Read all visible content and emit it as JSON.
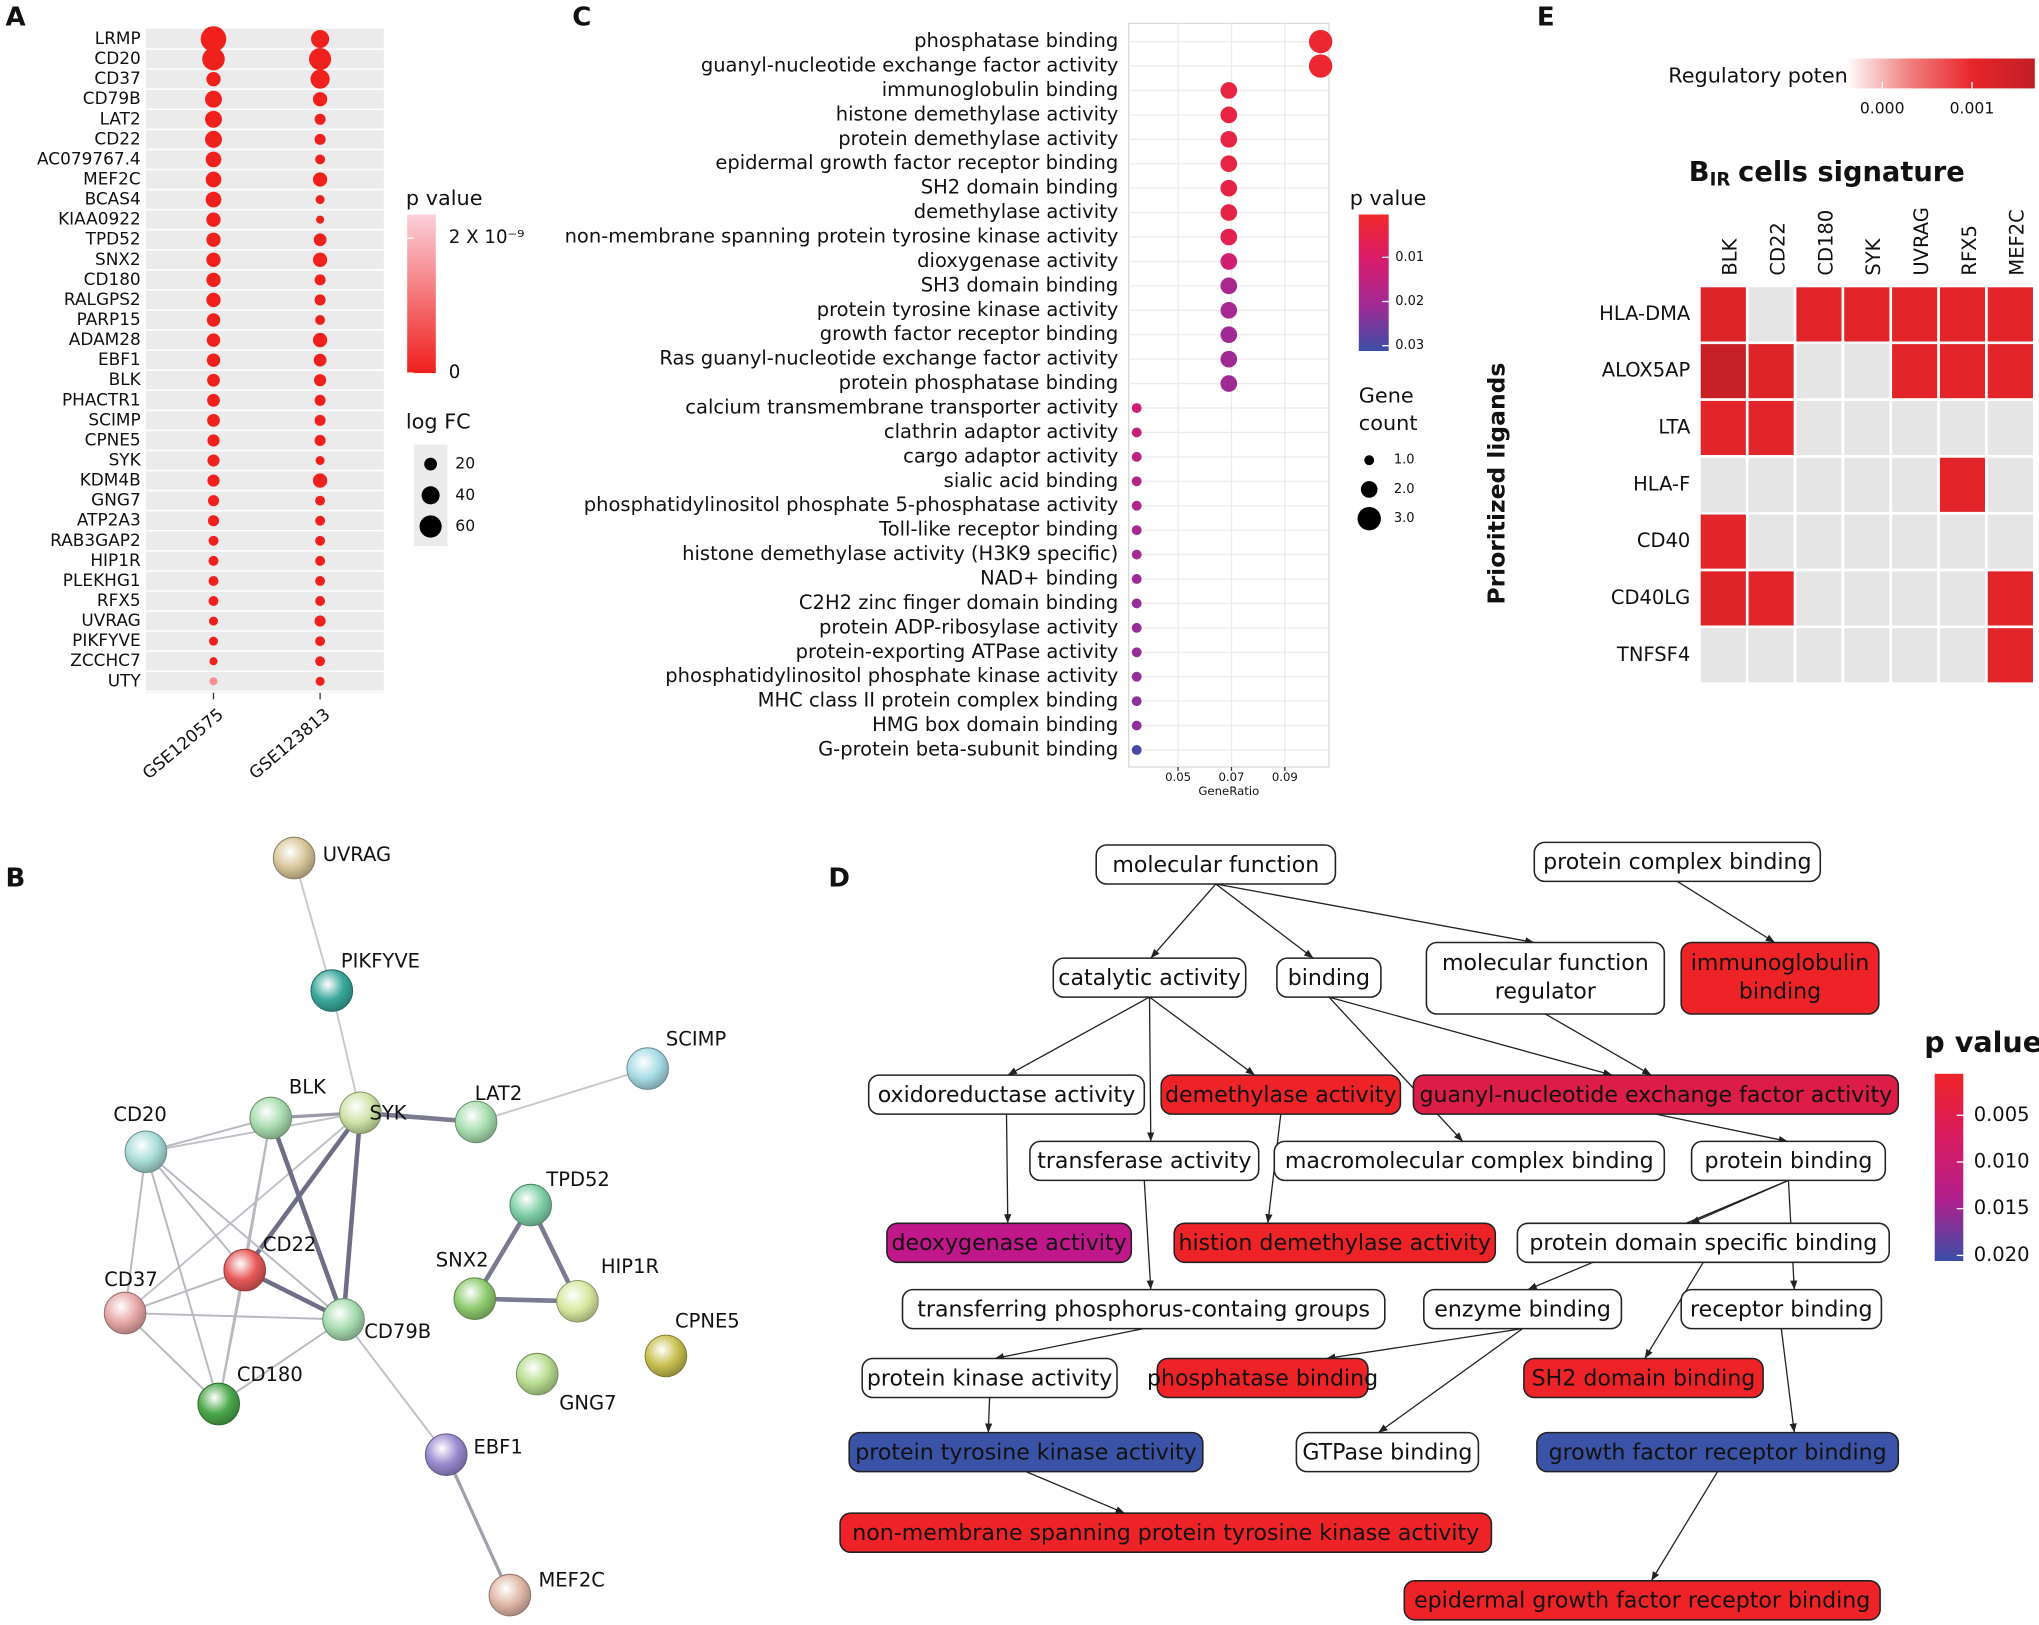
{
  "chart_data": [
    {
      "type": "dot",
      "panel": "A",
      "categories": [
        "LRMP",
        "CD20",
        "CD37",
        "CD79B",
        "LAT2",
        "CD22",
        "AC079767.4",
        "MEF2C",
        "BCAS4",
        "KIAA0922",
        "TPD52",
        "SNX2",
        "CD180",
        "RALGPS2",
        "PARP15",
        "ADAM28",
        "EBF1",
        "BLK",
        "PHACTR1",
        "SCIMP",
        "CPNE5",
        "SYK",
        "KDM4B",
        "GNG7",
        "ATP2A3",
        "RAB3GAP2",
        "HIP1R",
        "PLEKHG1",
        "RFX5",
        "UVRAG",
        "PIKFYVE",
        "ZCCHC7",
        "UTY"
      ],
      "series": [
        {
          "name": "GSE120575",
          "sizes": [
            80,
            62,
            25,
            35,
            35,
            35,
            30,
            30,
            30,
            25,
            25,
            25,
            25,
            25,
            22,
            22,
            22,
            20,
            20,
            20,
            18,
            18,
            18,
            15,
            15,
            12,
            12,
            12,
            12,
            10,
            10,
            8,
            8
          ],
          "color_values": [
            0,
            0,
            0,
            0,
            0,
            0,
            0,
            0,
            0,
            0,
            0,
            0,
            0,
            0,
            0,
            0,
            0,
            0,
            0,
            0,
            0,
            0,
            0,
            0,
            0,
            0,
            0,
            0,
            0,
            0,
            0,
            0,
            1.5e-09
          ]
        },
        {
          "name": "GSE123813",
          "sizes": [
            40,
            60,
            45,
            25,
            15,
            15,
            12,
            25,
            10,
            8,
            20,
            25,
            15,
            15,
            12,
            25,
            20,
            18,
            15,
            15,
            15,
            10,
            25,
            12,
            12,
            12,
            12,
            12,
            12,
            15,
            12,
            12,
            10
          ],
          "color_values": [
            0,
            0,
            0,
            0,
            0,
            0,
            0,
            0,
            0,
            0,
            0,
            0,
            0,
            0,
            0,
            0,
            0,
            0,
            0,
            0,
            0,
            0,
            0,
            0,
            0,
            0,
            0,
            0,
            0,
            0,
            0,
            0,
            0
          ]
        }
      ],
      "color_legend": {
        "title": "p value",
        "lim": [
          0,
          2.35e-09
        ],
        "ticks": [
          {
            "value": 2e-09,
            "label": "2 X 10⁻⁹"
          },
          0
        ],
        "colors": [
          "#f0201c",
          "#fbd0da"
        ]
      },
      "size_legend": {
        "title": "log FC",
        "values": [
          20,
          40,
          60
        ]
      }
    },
    {
      "type": "dot",
      "panel": "C",
      "categories": [
        "phosphatase binding",
        "guanyl-nucleotide exchange factor activity",
        "immunoglobulin binding",
        "histone demethylase activity",
        "protein demethylase activity",
        "epidermal growth factor receptor binding",
        "SH2 domain binding",
        "demethylase activity",
        "non-membrane spanning protein tyrosine kinase activity",
        "dioxygenase activity",
        "SH3 domain binding",
        "protein tyrosine kinase activity",
        "growth factor receptor binding",
        "Ras guanyl-nucleotide exchange factor activity",
        "protein phosphatase binding",
        "calcium transmembrane transporter activity",
        "clathrin adaptor activity",
        "cargo adaptor activity",
        "sialic acid binding",
        "phosphatidylinositol phosphate 5-phosphatase activity",
        "Toll-like receptor binding",
        "histone demethylase activity (H3K9 specific)",
        "NAD+ binding",
        "C2H2 zinc finger domain binding",
        "protein ADP-ribosylase activity",
        "protein-exporting ATPase activity",
        "phosphatidylinositol phosphate kinase activity",
        "MHC class II protein complex binding",
        "HMG box domain binding",
        "G-protein beta-subunit binding"
      ],
      "values": [
        0.1034,
        0.1034,
        0.069,
        0.069,
        0.069,
        0.069,
        0.069,
        0.069,
        0.069,
        0.069,
        0.069,
        0.069,
        0.069,
        0.069,
        0.069,
        0.0345,
        0.0345,
        0.0345,
        0.0345,
        0.0345,
        0.0345,
        0.0345,
        0.0345,
        0.0345,
        0.0345,
        0.0345,
        0.0345,
        0.0345,
        0.0345,
        0.0345
      ],
      "sizes": [
        3,
        3,
        2,
        2,
        2,
        2,
        2,
        2,
        2,
        2,
        2,
        2,
        2,
        2,
        2,
        1,
        1,
        1,
        1,
        1,
        1,
        1,
        1,
        1,
        1,
        1,
        1,
        1,
        1,
        1
      ],
      "color_values": [
        0.0015,
        0.0015,
        0.004,
        0.004,
        0.004,
        0.004,
        0.0045,
        0.005,
        0.006,
        0.012,
        0.019,
        0.02,
        0.021,
        0.021,
        0.021,
        0.012,
        0.014,
        0.016,
        0.017,
        0.018,
        0.019,
        0.02,
        0.021,
        0.022,
        0.022,
        0.022,
        0.022,
        0.023,
        0.023,
        0.03
      ],
      "xlim": [
        0.0315,
        0.1065
      ],
      "xticks": [
        0.05,
        0.07,
        0.09
      ],
      "xlabel": "GeneRatio",
      "grid": true,
      "color_legend": {
        "title": "p value",
        "lim": [
          0.0003,
          0.0312
        ],
        "ticks": [
          0.01,
          0.02,
          0.03
        ],
        "colors": [
          "#f0282a",
          "#d81c6c",
          "#a02a94",
          "#3b4ea6"
        ]
      },
      "size_legend": {
        "title": [
          "Gene",
          "count"
        ],
        "values": [
          {
            "value": 1,
            "label": "1.0"
          },
          {
            "value": 2,
            "label": "2.0"
          },
          {
            "value": 3,
            "label": "3.0"
          }
        ]
      }
    },
    {
      "type": "heatmap",
      "panel": "E",
      "title_parts": [
        "B",
        "IR",
        "cells signature"
      ],
      "rows": [
        "HLA-DMA",
        "ALOX5AP",
        "LTA",
        "HLA-F",
        "CD40",
        "CD40LG",
        "TNFSF4"
      ],
      "columns": [
        "BLK",
        "CD22",
        "CD180",
        "SYK",
        "UVRAG",
        "RFX5",
        "MEF2C"
      ],
      "values": [
        [
          0.0012,
          null,
          0.0011,
          0.0011,
          0.0011,
          0.0011,
          0.0011
        ],
        [
          0.0016,
          0.0012,
          null,
          null,
          0.0011,
          0.0011,
          0.0011
        ],
        [
          0.0011,
          0.0011,
          null,
          null,
          null,
          null,
          null
        ],
        [
          null,
          null,
          null,
          null,
          null,
          0.0011,
          null
        ],
        [
          0.0011,
          null,
          null,
          null,
          null,
          null,
          null
        ],
        [
          0.0012,
          0.0011,
          null,
          null,
          null,
          null,
          0.0011
        ],
        [
          null,
          null,
          null,
          null,
          null,
          null,
          0.0011
        ]
      ],
      "ylabel": "Prioritized ligands",
      "na_color": "#e5e5e5",
      "color_legend": {
        "title": "Regulatory potential",
        "lim": [
          -0.0004,
          0.0017
        ],
        "ticks": [
          {
            "value": 0,
            "label": "0.000"
          },
          {
            "value": 0.001,
            "label": "0.001"
          }
        ],
        "colors": [
          "#ffffff",
          "#f08080",
          "#e8262b",
          "#c01f25"
        ]
      }
    }
  ],
  "network": {
    "panel": "B",
    "nodes": [
      {
        "label": "UVRAG",
        "color": "#d8c79a"
      },
      {
        "label": "PIKFYVE",
        "color": "#3aa89c"
      },
      {
        "label": "SCIMP",
        "color": "#a8dce6"
      },
      {
        "label": "LAT2",
        "color": "#a8deb0"
      },
      {
        "label": "SYK",
        "color": "#cfe3a8"
      },
      {
        "label": "BLK",
        "color": "#a8dcb0"
      },
      {
        "label": "CD20",
        "color": "#a8dcd8"
      },
      {
        "label": "CD22",
        "color": "#e85a5a"
      },
      {
        "label": "CD37",
        "color": "#e8a8a8"
      },
      {
        "label": "CD79B",
        "color": "#a8dcb0"
      },
      {
        "label": "CD180",
        "color": "#4ca84c"
      },
      {
        "label": "TPD52",
        "color": "#80d0a8"
      },
      {
        "label": "SNX2",
        "color": "#90cc70"
      },
      {
        "label": "HIP1R",
        "color": "#d8e8a0"
      },
      {
        "label": "CPNE5",
        "color": "#c8c050"
      },
      {
        "label": "GNG7",
        "color": "#b8dc90"
      },
      {
        "label": "EBF1",
        "color": "#9a8ad0"
      },
      {
        "label": "MEF2C",
        "color": "#e0b8a8"
      }
    ]
  },
  "go_graph": {
    "panel": "D",
    "nodes": [
      {
        "label": "molecular function",
        "color": "#ffffff"
      },
      {
        "label": "protein complex binding",
        "color": "#ffffff"
      },
      {
        "label": "catalytic activity",
        "color": "#ffffff"
      },
      {
        "label": "binding",
        "color": "#ffffff"
      },
      {
        "label": [
          "molecular function",
          "regulator"
        ],
        "color": "#ffffff"
      },
      {
        "label": [
          "immunoglobulin",
          "binding"
        ],
        "color": "#ee2327"
      },
      {
        "label": "oxidoreductase activity",
        "color": "#ffffff"
      },
      {
        "label": "demethylase activity",
        "color": "#ee2327"
      },
      {
        "label": "guanyl-nucleotide exchange factor activity",
        "color": "#dc1d48"
      },
      {
        "label": "transferase activity",
        "color": "#ffffff"
      },
      {
        "label": "macromolecular complex binding",
        "color": "#ffffff"
      },
      {
        "label": "protein binding",
        "color": "#ffffff"
      },
      {
        "label": "deoxygenase activity",
        "color": "#c0188a"
      },
      {
        "label": "histion demethylase activity",
        "color": "#ee2327"
      },
      {
        "label": "protein domain specific binding",
        "color": "#ffffff"
      },
      {
        "label": "transferring phosphorus-containg groups",
        "color": "#ffffff"
      },
      {
        "label": "enzyme binding",
        "color": "#ffffff"
      },
      {
        "label": "receptor binding",
        "color": "#ffffff"
      },
      {
        "label": "protein kinase activity",
        "color": "#ffffff"
      },
      {
        "label": "phosphatase binding",
        "color": "#ee2327"
      },
      {
        "label": "SH2 domain binding",
        "color": "#ee2327"
      },
      {
        "label": "protein tyrosine kinase activity",
        "color": "#3a53a6"
      },
      {
        "label": "GTPase binding",
        "color": "#ffffff"
      },
      {
        "label": "growth factor receptor binding",
        "color": "#3a53a6"
      },
      {
        "label": "non-membrane spanning protein tyrosine kinase activity",
        "color": "#ee2327"
      },
      {
        "label": "epidermal growth factor receptor binding",
        "color": "#ee2327"
      }
    ],
    "legend": {
      "title": "p value",
      "lim": [
        0.00056,
        0.0206
      ],
      "ticks": [
        0.005,
        {
          "value": 0.01,
          "label": "0.010"
        },
        {
          "value": 0.015,
          "label": "0.015"
        },
        {
          "value": 0.02,
          "label": "0.020"
        }
      ],
      "colors": [
        "#ee2428",
        "#d81c60",
        "#b21f8c",
        "#3b4ea6"
      ]
    }
  }
}
